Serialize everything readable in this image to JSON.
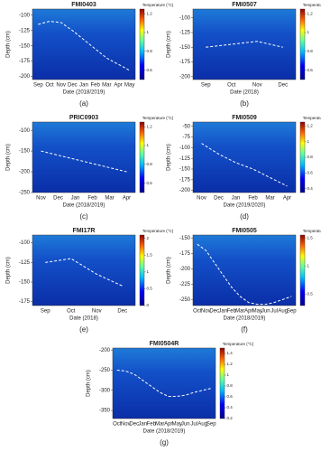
{
  "chart_data": [
    {
      "type": "heatmap",
      "title": "FMI0403",
      "caption": "(a)",
      "xlabel": "Date (2018/2019)",
      "ylabel": "Depth (cm)",
      "categories": [
        "Sep",
        "Oct",
        "Nov",
        "Dec",
        "Jan",
        "Feb",
        "Mar",
        "Apr",
        "May"
      ],
      "ylim": [
        -205,
        -90
      ],
      "yticks": [
        -100,
        -125,
        -150,
        -175,
        -200
      ],
      "boundary": [
        -115,
        -110,
        -112,
        -125,
        -140,
        -155,
        -170,
        -180,
        -190
      ],
      "colorbar": {
        "label": "Temperature (°C)",
        "lim": [
          0.5,
          1.25
        ],
        "ticks": [
          1.2,
          1,
          0.8,
          0.6
        ]
      }
    },
    {
      "type": "heatmap",
      "title": "FMI0507",
      "caption": "(b)",
      "xlabel": "Date (2018)",
      "ylabel": "Depth (cm)",
      "categories": [
        "Sep",
        "Oct",
        "Nov",
        "Dec"
      ],
      "ylim": [
        -205,
        -85
      ],
      "yticks": [
        -100,
        -125,
        -150,
        -175,
        -200
      ],
      "boundary": [
        -150,
        -145,
        -140,
        -150
      ],
      "colorbar": {
        "label": "Temperature (°C)",
        "lim": [
          0.5,
          1.25
        ],
        "ticks": [
          1.2,
          1,
          0.8,
          0.6
        ]
      }
    },
    {
      "type": "heatmap",
      "title": "PRIC0903",
      "caption": "(c)",
      "xlabel": "Date (2018/2019)",
      "ylabel": "Depth (cm)",
      "categories": [
        "Nov",
        "Dec",
        "Jan",
        "Feb",
        "Mar",
        "Apr"
      ],
      "ylim": [
        -250,
        -80
      ],
      "yticks": [
        -100,
        -150,
        -200,
        -250
      ],
      "boundary": [
        -150,
        -160,
        -170,
        -180,
        -190,
        -200
      ],
      "colorbar": {
        "label": "Temperature (°C)",
        "lim": [
          0.5,
          1.25
        ],
        "ticks": [
          1.2,
          1,
          0.8,
          0.6
        ]
      }
    },
    {
      "type": "heatmap",
      "title": "FMI0509",
      "caption": "(d)",
      "xlabel": "Date (2019/2020)",
      "ylabel": "Depth (cm)",
      "categories": [
        "Nov",
        "Dec",
        "Jan",
        "Feb",
        "Mar",
        "Apr"
      ],
      "ylim": [
        -205,
        -40
      ],
      "yticks": [
        -50,
        -75,
        -100,
        -125,
        -150,
        -175,
        -200
      ],
      "boundary": [
        -90,
        -115,
        -135,
        -150,
        -170,
        -190
      ],
      "colorbar": {
        "label": "Temperature (°C)",
        "lim": [
          0.35,
          1.25
        ],
        "ticks": [
          1.2,
          1,
          0.8,
          0.6,
          0.4
        ]
      }
    },
    {
      "type": "heatmap",
      "title": "FMI17R",
      "caption": "(e)",
      "xlabel": "Date (2018)",
      "ylabel": "Depth (cm)",
      "categories": [
        "Sep",
        "Oct",
        "Nov",
        "Dec"
      ],
      "ylim": [
        -180,
        -90
      ],
      "yticks": [
        -100,
        -125,
        -150,
        -175
      ],
      "boundary": [
        -125,
        -120,
        -140,
        -155
      ],
      "colorbar": {
        "label": "Temperature (°C)",
        "lim": [
          0,
          2.1
        ],
        "ticks": [
          2,
          1.5,
          1,
          0.5,
          0
        ]
      }
    },
    {
      "type": "heatmap",
      "title": "FMI0505",
      "caption": "(f)",
      "xlabel": "Date (2018/2019)",
      "ylabel": "Depth (cm)",
      "categories": [
        "Oct",
        "Nov",
        "Dec",
        "Jan",
        "Feb",
        "Mar",
        "Apr",
        "May",
        "Jun",
        "Jul",
        "Aug",
        "Sep"
      ],
      "ylim": [
        -260,
        -145
      ],
      "yticks": [
        -150,
        -175,
        -200,
        -225,
        -250
      ],
      "boundary": [
        -160,
        -170,
        -190,
        -210,
        -230,
        -245,
        -255,
        -258,
        -258,
        -255,
        -250,
        -245
      ],
      "colorbar": {
        "label": "Temperature (°C)",
        "lim": [
          0.3,
          1.55
        ],
        "ticks": [
          1.5,
          1,
          0.5
        ]
      }
    },
    {
      "type": "heatmap",
      "title": "FMI0504R",
      "caption": "(g)",
      "xlabel": "Date (2018/2019)",
      "ylabel": "Depth (cm)",
      "categories": [
        "Oct",
        "Nov",
        "Dec",
        "Jan",
        "Feb",
        "Mar",
        "Apr",
        "May",
        "Jun",
        "Jul",
        "Aug",
        "Sep"
      ],
      "ylim": [
        -370,
        -195
      ],
      "yticks": [
        -200,
        -250,
        -300,
        -350
      ],
      "boundary": [
        -250,
        -252,
        -260,
        -275,
        -290,
        -305,
        -315,
        -315,
        -312,
        -305,
        -300,
        -295
      ],
      "colorbar": {
        "label": "Temperature (°C)",
        "lim": [
          0.2,
          1.5
        ],
        "ticks": [
          1.4,
          1.2,
          1,
          0.8,
          0.6,
          0.4,
          0.2
        ]
      }
    }
  ]
}
